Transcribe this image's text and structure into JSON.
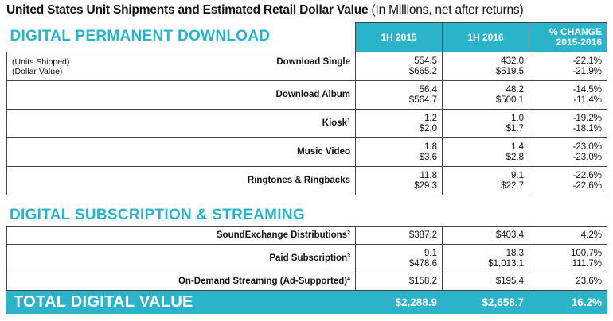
{
  "title": {
    "main": "United States Unit Shipments and Estimated Retail Dollar Value",
    "sub": "(In Millions, net after returns)"
  },
  "colors": {
    "accent": "#2ab3c9"
  },
  "header": {
    "section": "DIGITAL PERMANENT DOWNLOAD",
    "col_1h2015": "1H 2015",
    "col_1h2016": "1H 2016",
    "col_change_line1": "% CHANGE",
    "col_change_line2": "2015-2016"
  },
  "permanent": {
    "units_note": "(Units Shipped)",
    "dollar_note": "(Dollar Value)",
    "rows": [
      {
        "label": "Download Single",
        "sup": "",
        "v15_units": "554.5",
        "v15_dollars": "$665.2",
        "v16_units": "432.0",
        "v16_dollars": "$519.5",
        "ch_units": "-22.1%",
        "ch_dollars": "-21.9%"
      },
      {
        "label": "Download Album",
        "sup": "",
        "v15_units": "56.4",
        "v15_dollars": "$564.7",
        "v16_units": "48.2",
        "v16_dollars": "$500.1",
        "ch_units": "-14.5%",
        "ch_dollars": "-11.4%"
      },
      {
        "label": "Kiosk",
        "sup": "1",
        "v15_units": "1.2",
        "v15_dollars": "$2.0",
        "v16_units": "1.0",
        "v16_dollars": "$1.7",
        "ch_units": "-19.2%",
        "ch_dollars": "-18.1%"
      },
      {
        "label": "Music Video",
        "sup": "",
        "v15_units": "1.8",
        "v15_dollars": "$3.6",
        "v16_units": "1.4",
        "v16_dollars": "$2.8",
        "ch_units": "-23.0%",
        "ch_dollars": "-23.0%"
      },
      {
        "label": "Ringtones & Ringbacks",
        "sup": "",
        "v15_units": "11.8",
        "v15_dollars": "$29.3",
        "v16_units": "9.1",
        "v16_dollars": "$22.7",
        "ch_units": "-22.6%",
        "ch_dollars": "-22.6%"
      }
    ]
  },
  "streaming": {
    "section": "DIGITAL SUBSCRIPTION & STREAMING",
    "rows": [
      {
        "label": "SoundExchange Distributions",
        "sup": "2",
        "v15": "$387.2",
        "v16": "$403.4",
        "ch": "4.2%"
      },
      {
        "label": "Paid Subscription",
        "sup": "3",
        "v15_units": "9.1",
        "v15_dollars": "$478.6",
        "v16_units": "18.3",
        "v16_dollars": "$1,013.1",
        "ch_units": "100.7%",
        "ch_dollars": "111.7%"
      },
      {
        "label": "On-Demand Streaming (Ad-Supported)",
        "sup": "4",
        "v15": "$158.2",
        "v16": "$195.4",
        "ch": "23.6%"
      }
    ]
  },
  "total": {
    "label": "TOTAL DIGITAL VALUE",
    "v15": "$2,288.9",
    "v16": "$2,658.7",
    "ch": "16.2%"
  }
}
